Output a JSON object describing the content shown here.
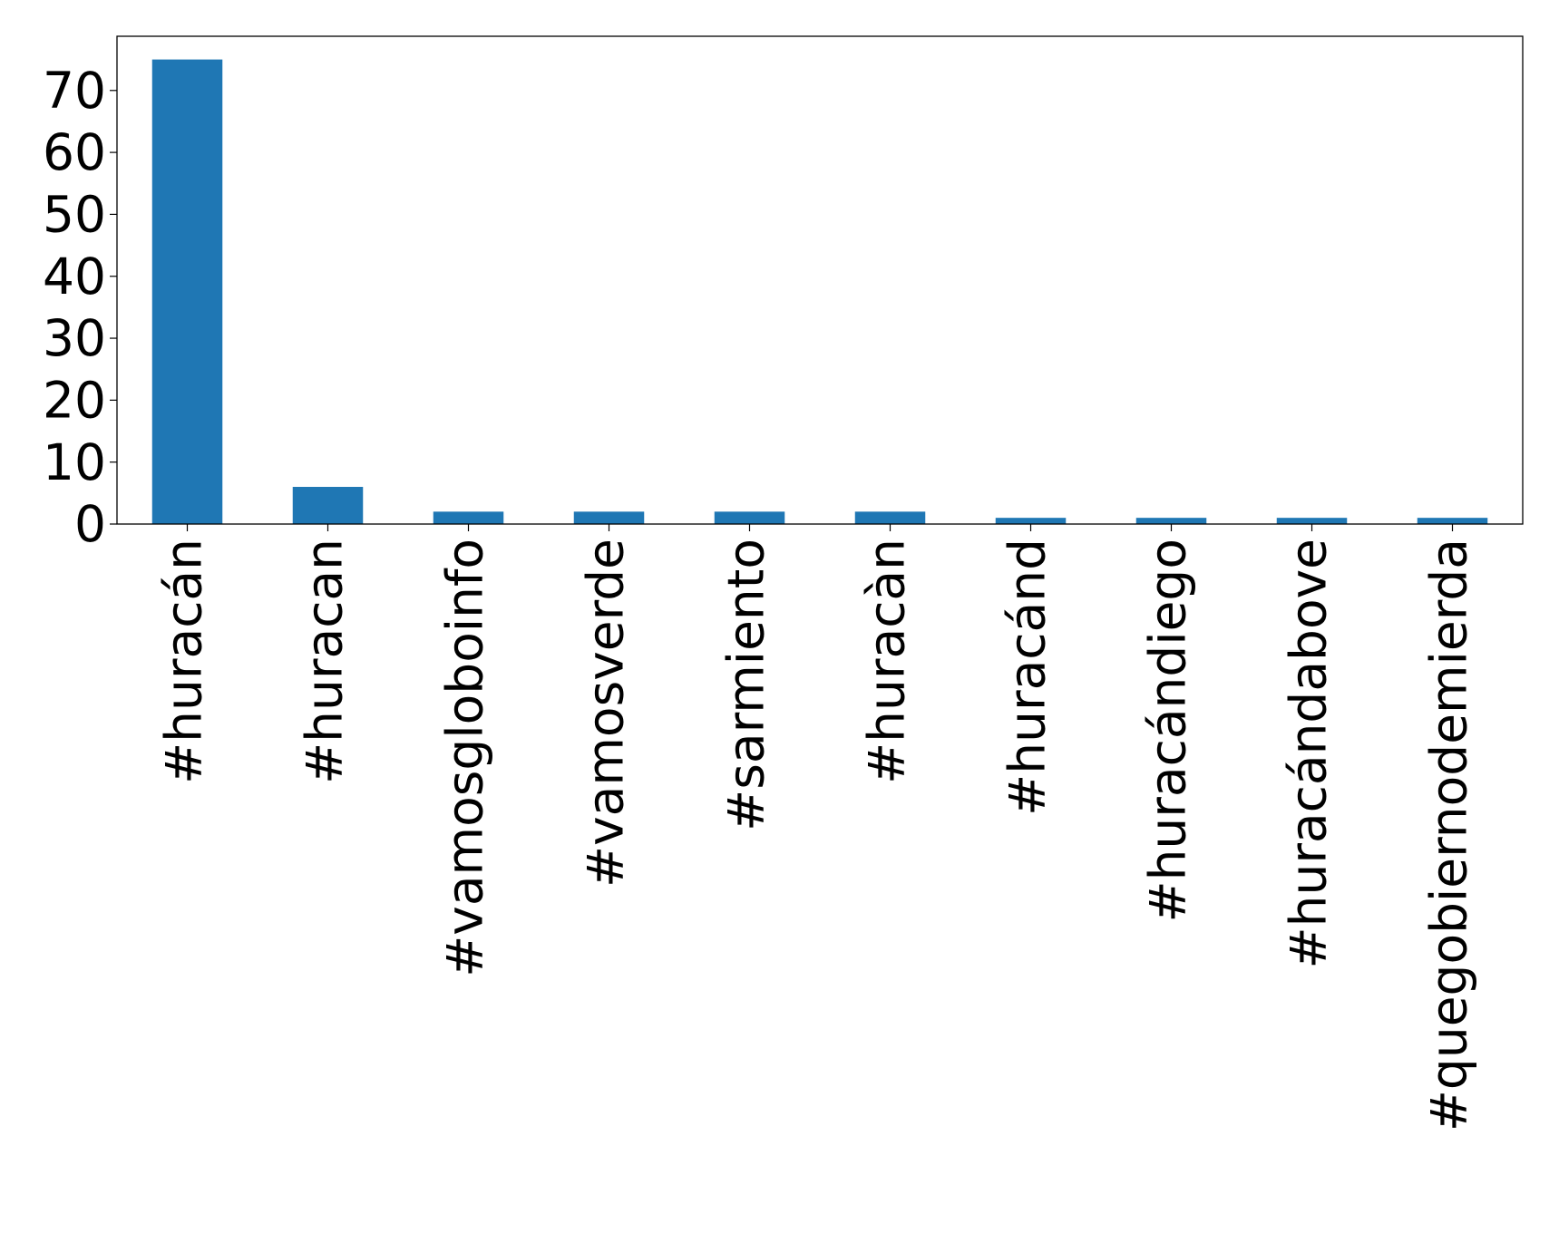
{
  "chart_data": {
    "type": "bar",
    "categories": [
      "#huracán",
      "#huracan",
      "#vamosgloboinfo",
      "#vamosverde",
      "#sarmiento",
      "#huracàn",
      "#huracánd",
      "#huracándiego",
      "#huracándabove",
      "#quegobiernodemierda"
    ],
    "values": [
      75,
      6,
      2,
      2,
      2,
      2,
      1,
      1,
      1,
      1
    ],
    "color": "#1f77b4",
    "ylim": [
      0,
      78.75
    ],
    "yticks": [
      0,
      10,
      20,
      30,
      40,
      50,
      60,
      70
    ],
    "grid": false
  }
}
